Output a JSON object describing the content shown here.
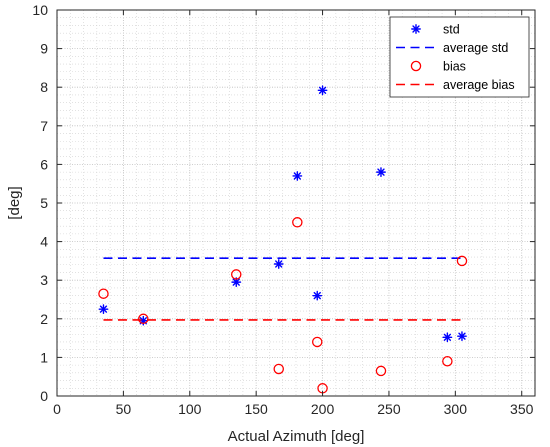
{
  "chart_data": {
    "type": "scatter",
    "title": "",
    "xlabel": "Actual Azimuth [deg]",
    "ylabel": "[deg]",
    "xlim": [
      0,
      360
    ],
    "ylim": [
      0,
      10
    ],
    "xticks": [
      0,
      50,
      100,
      150,
      200,
      250,
      300,
      350
    ],
    "yticks": [
      0,
      1,
      2,
      3,
      4,
      5,
      6,
      7,
      8,
      9,
      10
    ],
    "grid": true,
    "minor_grid": true,
    "legend_position": "top-right",
    "series": [
      {
        "name": "std",
        "marker": "asterisk",
        "color": "#0000ff",
        "x": [
          35,
          65,
          135,
          167,
          181,
          196,
          200,
          244,
          294,
          305
        ],
        "y": [
          2.25,
          1.95,
          2.95,
          3.42,
          5.7,
          2.6,
          7.92,
          5.8,
          1.52,
          1.55
        ]
      },
      {
        "name": "average std",
        "line": "dashed",
        "color": "#0000ff",
        "x": [
          35,
          305
        ],
        "y": [
          3.57,
          3.57
        ]
      },
      {
        "name": "bias",
        "marker": "circle",
        "color": "#ff0000",
        "x": [
          35,
          65,
          135,
          167,
          181,
          196,
          200,
          244,
          294,
          305
        ],
        "y": [
          2.65,
          2.0,
          3.15,
          0.7,
          4.5,
          1.4,
          0.2,
          0.65,
          0.9,
          3.5
        ]
      },
      {
        "name": "average bias",
        "line": "dashed",
        "color": "#ff0000",
        "x": [
          35,
          305
        ],
        "y": [
          1.97,
          1.97
        ]
      }
    ]
  }
}
